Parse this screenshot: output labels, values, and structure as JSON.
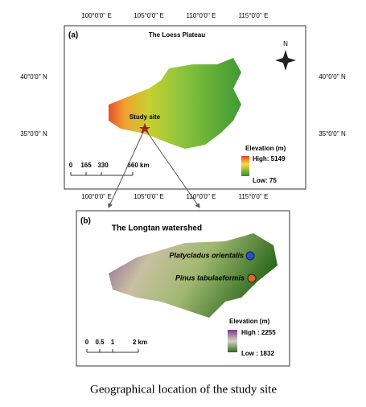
{
  "panel_a": {
    "label": "(a)",
    "title": "The Loess Plateau",
    "longitudes": [
      "100°0'0'' E",
      "105°0'0'' E",
      "110°0'0'' E",
      "115°0'0'' E"
    ],
    "latitudes": [
      "40°0'0'' N",
      "35°0'0'' N"
    ],
    "north": "N",
    "site_label": "Study site",
    "legend": {
      "title": "Elevation (m)",
      "high": "High: 5149",
      "low": "Low: 75"
    },
    "scale": [
      "0",
      "165",
      "330",
      "660 km"
    ]
  },
  "panel_b": {
    "label": "(b)",
    "title": "The Longtan watershed",
    "sites": [
      "Platycladus orientalis",
      "Pinus tabulaeformis"
    ],
    "legend": {
      "title": "Elevation (m)",
      "high": "High : 2255",
      "low": "Low : 1832"
    },
    "scale": [
      "0",
      "0.5",
      "1",
      "2 km"
    ]
  },
  "caption": "Geographical location of the study site"
}
